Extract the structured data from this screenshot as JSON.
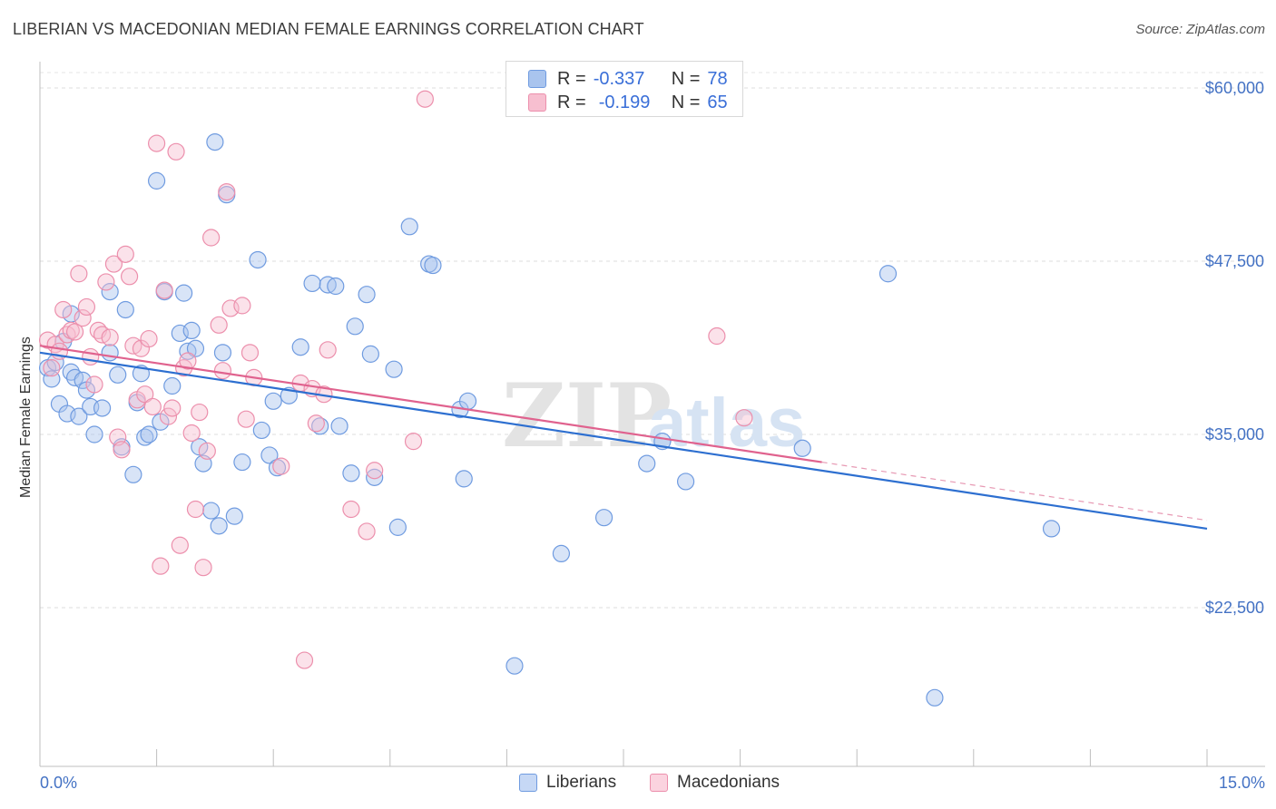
{
  "title": "LIBERIAN VS MACEDONIAN MEDIAN FEMALE EARNINGS CORRELATION CHART",
  "source": "Source: ZipAtlas.com",
  "watermark": {
    "zip": "ZIP",
    "atlas": "atlas"
  },
  "legend": {
    "r_label": "R =",
    "n_label": "N =",
    "rows": [
      {
        "r": "-0.337",
        "n": "78",
        "color": "#a9c4ee",
        "border": "#6f9be0"
      },
      {
        "r": "-0.199",
        "n": "65",
        "color": "#f7bfd0",
        "border": "#ec8fac"
      }
    ]
  },
  "bottom_legend": [
    {
      "label": "Liberians",
      "color": "#c6d8f5",
      "border": "#6f9be0"
    },
    {
      "label": "Macedonians",
      "color": "#fbd3df",
      "border": "#ec8fac"
    }
  ],
  "chart_data": {
    "type": "scatter",
    "title": "LIBERIAN VS MACEDONIAN MEDIAN FEMALE EARNINGS CORRELATION CHART",
    "xlabel": "",
    "ylabel": "Median Female Earnings",
    "xlim": [
      0,
      15
    ],
    "ylim": [
      10000,
      62500
    ],
    "x_tick_labels": [
      "0.0%",
      "15.0%"
    ],
    "y_ticks": [
      22500,
      35000,
      47500,
      60000
    ],
    "y_tick_labels": [
      "$22,500",
      "$35,000",
      "$47,500",
      "$60,000"
    ],
    "series": [
      {
        "name": "Liberians",
        "color": "#6f9be0",
        "fill": "rgba(169,196,238,0.45)",
        "trend": {
          "x0": 0,
          "y0": 40900,
          "x1": 15,
          "y1": 28200,
          "color": "#2d6fd0"
        },
        "points": [
          [
            0.1,
            39800
          ],
          [
            0.15,
            39000
          ],
          [
            0.2,
            40200
          ],
          [
            0.25,
            37200
          ],
          [
            0.3,
            41700
          ],
          [
            0.35,
            36500
          ],
          [
            0.4,
            43700
          ],
          [
            0.4,
            39500
          ],
          [
            0.45,
            39100
          ],
          [
            0.5,
            36300
          ],
          [
            0.55,
            38900
          ],
          [
            0.6,
            38200
          ],
          [
            0.65,
            37000
          ],
          [
            0.7,
            35000
          ],
          [
            0.8,
            36900
          ],
          [
            0.9,
            45300
          ],
          [
            0.9,
            40900
          ],
          [
            1.0,
            39300
          ],
          [
            1.05,
            34100
          ],
          [
            1.1,
            44000
          ],
          [
            1.2,
            32100
          ],
          [
            1.25,
            37300
          ],
          [
            1.3,
            39400
          ],
          [
            1.35,
            34800
          ],
          [
            1.4,
            35000
          ],
          [
            1.5,
            53300
          ],
          [
            1.55,
            35900
          ],
          [
            1.6,
            45300
          ],
          [
            1.7,
            38500
          ],
          [
            1.8,
            42300
          ],
          [
            1.85,
            45200
          ],
          [
            1.9,
            41000
          ],
          [
            1.95,
            42500
          ],
          [
            2.0,
            41200
          ],
          [
            2.05,
            34100
          ],
          [
            2.1,
            32900
          ],
          [
            2.2,
            29500
          ],
          [
            2.25,
            56100
          ],
          [
            2.3,
            28400
          ],
          [
            2.35,
            40900
          ],
          [
            2.4,
            52300
          ],
          [
            2.5,
            29100
          ],
          [
            2.6,
            33000
          ],
          [
            2.8,
            47600
          ],
          [
            2.85,
            35300
          ],
          [
            2.95,
            33500
          ],
          [
            3.0,
            37400
          ],
          [
            3.05,
            32600
          ],
          [
            3.2,
            37800
          ],
          [
            3.35,
            41300
          ],
          [
            3.5,
            45900
          ],
          [
            3.6,
            35600
          ],
          [
            3.7,
            45800
          ],
          [
            3.8,
            45700
          ],
          [
            3.85,
            35600
          ],
          [
            4.0,
            32200
          ],
          [
            4.05,
            42800
          ],
          [
            4.2,
            45100
          ],
          [
            4.25,
            40800
          ],
          [
            4.3,
            31900
          ],
          [
            4.55,
            39700
          ],
          [
            4.6,
            28300
          ],
          [
            4.75,
            50000
          ],
          [
            5.0,
            47300
          ],
          [
            5.05,
            47200
          ],
          [
            5.4,
            36800
          ],
          [
            5.5,
            37400
          ],
          [
            5.45,
            31800
          ],
          [
            6.1,
            18300
          ],
          [
            6.7,
            26400
          ],
          [
            7.25,
            29000
          ],
          [
            7.8,
            32900
          ],
          [
            8.0,
            34500
          ],
          [
            8.3,
            31600
          ],
          [
            9.8,
            34000
          ],
          [
            10.9,
            46600
          ],
          [
            11.5,
            16000
          ],
          [
            13.0,
            28200
          ]
        ]
      },
      {
        "name": "Macedonians",
        "color": "#ec8fac",
        "fill": "rgba(247,191,208,0.45)",
        "trend": {
          "x0": 0,
          "y0": 41400,
          "x1": 10.05,
          "y1": 33000,
          "color": "#e0628e"
        },
        "trend_dashed": {
          "x0": 10.05,
          "y0": 33000,
          "x1": 15,
          "y1": 28800,
          "color": "#e79ab4"
        },
        "points": [
          [
            0.1,
            41800
          ],
          [
            0.15,
            39800
          ],
          [
            0.2,
            41500
          ],
          [
            0.25,
            41000
          ],
          [
            0.3,
            44000
          ],
          [
            0.35,
            42200
          ],
          [
            0.4,
            42500
          ],
          [
            0.45,
            42400
          ],
          [
            0.5,
            46600
          ],
          [
            0.55,
            43400
          ],
          [
            0.6,
            44200
          ],
          [
            0.65,
            40600
          ],
          [
            0.7,
            38600
          ],
          [
            0.75,
            42500
          ],
          [
            0.8,
            42200
          ],
          [
            0.85,
            46000
          ],
          [
            0.9,
            42000
          ],
          [
            0.95,
            47300
          ],
          [
            1.0,
            34800
          ],
          [
            1.05,
            33900
          ],
          [
            1.1,
            48000
          ],
          [
            1.15,
            46400
          ],
          [
            1.2,
            41400
          ],
          [
            1.25,
            37500
          ],
          [
            1.3,
            41200
          ],
          [
            1.35,
            37900
          ],
          [
            1.4,
            41900
          ],
          [
            1.45,
            37000
          ],
          [
            1.5,
            56000
          ],
          [
            1.55,
            25500
          ],
          [
            1.6,
            45400
          ],
          [
            1.65,
            36300
          ],
          [
            1.7,
            36900
          ],
          [
            1.75,
            55400
          ],
          [
            1.8,
            27000
          ],
          [
            1.85,
            39800
          ],
          [
            1.9,
            40300
          ],
          [
            1.95,
            35100
          ],
          [
            2.0,
            29600
          ],
          [
            2.05,
            36600
          ],
          [
            2.1,
            25400
          ],
          [
            2.15,
            33800
          ],
          [
            2.2,
            49200
          ],
          [
            2.3,
            42900
          ],
          [
            2.35,
            39600
          ],
          [
            2.4,
            52500
          ],
          [
            2.45,
            44100
          ],
          [
            2.6,
            44300
          ],
          [
            2.65,
            36100
          ],
          [
            2.7,
            40900
          ],
          [
            2.75,
            39100
          ],
          [
            3.1,
            32700
          ],
          [
            3.35,
            38700
          ],
          [
            3.4,
            18700
          ],
          [
            3.5,
            38300
          ],
          [
            3.55,
            35800
          ],
          [
            3.65,
            37900
          ],
          [
            3.7,
            41100
          ],
          [
            4.0,
            29600
          ],
          [
            4.2,
            28000
          ],
          [
            4.3,
            32400
          ],
          [
            4.8,
            34500
          ],
          [
            4.95,
            59200
          ],
          [
            8.7,
            42100
          ],
          [
            9.05,
            36200
          ]
        ]
      }
    ]
  }
}
